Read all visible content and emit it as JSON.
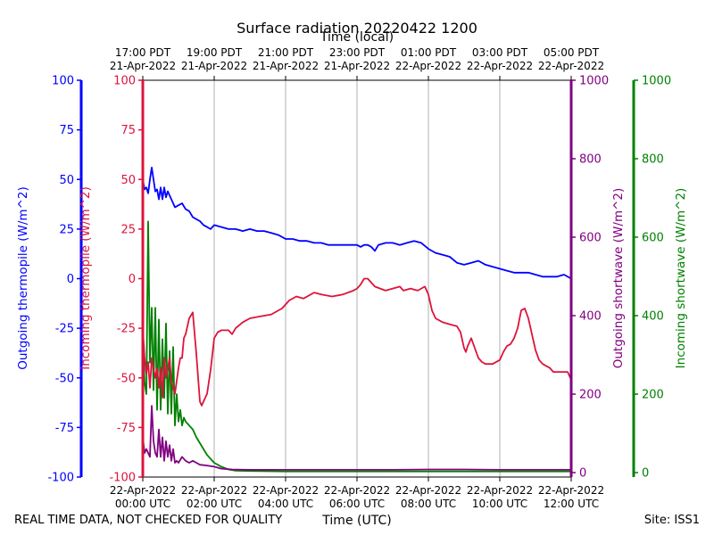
{
  "chart_data": {
    "type": "line",
    "title": "Surface radiation 20220422 1200",
    "top_axis_label": "Time (local)",
    "bottom_axis_label": "Time (UTC)",
    "x_range_hours_utc": [
      0,
      12
    ],
    "grid": "vertical lines at 2-hour ticks",
    "bottom_ticks": [
      {
        "t": 0,
        "line1": "22-Apr-2022",
        "line2": "00:00 UTC"
      },
      {
        "t": 2,
        "line1": "22-Apr-2022",
        "line2": "02:00 UTC"
      },
      {
        "t": 4,
        "line1": "22-Apr-2022",
        "line2": "04:00 UTC"
      },
      {
        "t": 6,
        "line1": "22-Apr-2022",
        "line2": "06:00 UTC"
      },
      {
        "t": 8,
        "line1": "22-Apr-2022",
        "line2": "08:00 UTC"
      },
      {
        "t": 10,
        "line1": "22-Apr-2022",
        "line2": "10:00 UTC"
      },
      {
        "t": 12,
        "line1": "22-Apr-2022",
        "line2": "12:00 UTC"
      }
    ],
    "top_ticks": [
      {
        "t": 0,
        "line1": "17:00 PDT",
        "line2": "21-Apr-2022"
      },
      {
        "t": 2,
        "line1": "19:00 PDT",
        "line2": "21-Apr-2022"
      },
      {
        "t": 4,
        "line1": "21:00 PDT",
        "line2": "21-Apr-2022"
      },
      {
        "t": 6,
        "line1": "23:00 PDT",
        "line2": "21-Apr-2022"
      },
      {
        "t": 8,
        "line1": "01:00 PDT",
        "line2": "22-Apr-2022"
      },
      {
        "t": 10,
        "line1": "03:00 PDT",
        "line2": "22-Apr-2022"
      },
      {
        "t": 12,
        "line1": "05:00 PDT",
        "line2": "22-Apr-2022"
      }
    ],
    "axes": [
      {
        "id": "out_thermo",
        "label": "Outgoing thermopile (W/m^2)",
        "color": "#0000ff",
        "ylim": [
          -100,
          100
        ],
        "ticks": [
          -100,
          -75,
          -50,
          -25,
          0,
          25,
          50,
          75,
          100
        ]
      },
      {
        "id": "in_thermo",
        "label": "Incoming thermopile (W/m^2)",
        "color": "#dc143c",
        "ylim": [
          -100,
          100
        ],
        "ticks": [
          -100,
          -75,
          -50,
          -25,
          0,
          25,
          50,
          75,
          100
        ]
      },
      {
        "id": "out_sw",
        "label": "Outgoing shortwave (W/m^2)",
        "color": "#800080",
        "ylim": [
          0,
          1000
        ],
        "ticks": [
          0,
          200,
          400,
          600,
          800,
          1000
        ]
      },
      {
        "id": "in_sw",
        "label": "Incoming shortwave (W/m^2)",
        "color": "#008000",
        "ylim": [
          0,
          1000
        ],
        "ticks": [
          0,
          200,
          400,
          600,
          800,
          1000
        ]
      }
    ],
    "series": [
      {
        "name": "Incoming shortwave",
        "axis": "in_sw",
        "color": "#008000",
        "t": [
          0,
          0.05,
          0.1,
          0.15,
          0.2,
          0.25,
          0.3,
          0.35,
          0.4,
          0.45,
          0.5,
          0.55,
          0.6,
          0.65,
          0.7,
          0.75,
          0.8,
          0.85,
          0.9,
          0.95,
          1.0,
          1.05,
          1.1,
          1.15,
          1.2,
          1.3,
          1.4,
          1.5,
          1.6,
          1.7,
          1.8,
          1.9,
          2.0,
          2.2,
          2.4,
          2.6,
          3.0,
          4.0,
          5.0,
          6.0,
          7.0,
          8.0,
          9.0,
          10.0,
          11.0,
          12.0
        ],
        "values": [
          350,
          230,
          200,
          640,
          280,
          420,
          210,
          420,
          160,
          390,
          160,
          340,
          190,
          380,
          150,
          310,
          150,
          320,
          120,
          200,
          130,
          160,
          120,
          140,
          130,
          120,
          110,
          90,
          75,
          60,
          45,
          35,
          25,
          15,
          8,
          5,
          4,
          3,
          3,
          3,
          3,
          3,
          3,
          3,
          3,
          3
        ]
      },
      {
        "name": "Outgoing shortwave",
        "axis": "out_sw",
        "color": "#800080",
        "t": [
          0,
          0.05,
          0.1,
          0.15,
          0.2,
          0.25,
          0.3,
          0.35,
          0.4,
          0.45,
          0.5,
          0.55,
          0.6,
          0.65,
          0.7,
          0.75,
          0.8,
          0.85,
          0.9,
          0.95,
          1.0,
          1.1,
          1.2,
          1.3,
          1.4,
          1.5,
          1.6,
          1.8,
          2.0,
          2.2,
          2.5,
          3.0,
          4.0,
          5.0,
          6.0,
          7.0,
          8.0,
          9.0,
          10.0,
          11.0,
          12.0
        ],
        "values": [
          90,
          50,
          60,
          50,
          40,
          170,
          80,
          50,
          40,
          110,
          40,
          90,
          30,
          80,
          40,
          70,
          30,
          60,
          25,
          30,
          25,
          40,
          30,
          25,
          30,
          25,
          20,
          18,
          15,
          10,
          8,
          7,
          7,
          7,
          7,
          7,
          8,
          8,
          7,
          7,
          7
        ]
      },
      {
        "name": "Incoming thermopile",
        "axis": "in_thermo",
        "color": "#dc143c",
        "t": [
          0,
          0.05,
          0.1,
          0.15,
          0.2,
          0.25,
          0.3,
          0.35,
          0.4,
          0.45,
          0.5,
          0.55,
          0.6,
          0.65,
          0.7,
          0.75,
          0.8,
          0.9,
          1.0,
          1.05,
          1.1,
          1.15,
          1.2,
          1.3,
          1.4,
          1.5,
          1.55,
          1.6,
          1.65,
          1.7,
          1.75,
          1.8,
          1.9,
          2.0,
          2.1,
          2.2,
          2.4,
          2.5,
          2.6,
          2.8,
          3.0,
          3.3,
          3.6,
          3.9,
          4.1,
          4.3,
          4.5,
          4.8,
          5.0,
          5.3,
          5.6,
          5.9,
          6.0,
          6.1,
          6.2,
          6.3,
          6.5,
          6.8,
          7.0,
          7.2,
          7.3,
          7.5,
          7.7,
          7.9,
          8.0,
          8.05,
          8.1,
          8.2,
          8.4,
          8.6,
          8.8,
          8.9,
          9.0,
          9.05,
          9.1,
          9.2,
          9.4,
          9.5,
          9.6,
          9.8,
          10.0,
          10.1,
          10.2,
          10.3,
          10.4,
          10.5,
          10.6,
          10.7,
          10.8,
          10.9,
          11.0,
          11.1,
          11.2,
          11.3,
          11.4,
          11.5,
          11.6,
          11.7,
          11.8,
          11.9,
          12.0
        ],
        "values": [
          -25,
          -40,
          -48,
          -42,
          -55,
          -40,
          -45,
          -50,
          -45,
          -55,
          -45,
          -60,
          -40,
          -50,
          -45,
          -40,
          -52,
          -58,
          -45,
          -40,
          -40,
          -30,
          -28,
          -20,
          -17,
          -38,
          -50,
          -62,
          -64,
          -62,
          -60,
          -58,
          -46,
          -30,
          -27,
          -26,
          -26,
          -28,
          -25,
          -22,
          -20,
          -19,
          -18,
          -15,
          -11,
          -9,
          -10,
          -7,
          -8,
          -9,
          -8,
          -6,
          -5,
          -3,
          0,
          0,
          -4,
          -6,
          -5,
          -4,
          -6,
          -5,
          -6,
          -4,
          -8,
          -12,
          -16,
          -20,
          -22,
          -23,
          -24,
          -27,
          -35,
          -37,
          -34,
          -30,
          -40,
          -42,
          -43,
          -43,
          -41,
          -37,
          -34,
          -33,
          -30,
          -25,
          -16,
          -15,
          -20,
          -28,
          -36,
          -41,
          -43,
          -44,
          -45,
          -47,
          -47,
          -47,
          -47,
          -47,
          -51
        ]
      },
      {
        "name": "Outgoing thermopile",
        "axis": "out_thermo",
        "color": "#0000ff",
        "t": [
          0,
          0.05,
          0.1,
          0.15,
          0.2,
          0.25,
          0.3,
          0.35,
          0.4,
          0.45,
          0.5,
          0.55,
          0.6,
          0.65,
          0.7,
          0.75,
          0.8,
          0.9,
          1.0,
          1.1,
          1.2,
          1.3,
          1.4,
          1.5,
          1.6,
          1.7,
          1.8,
          1.9,
          2.0,
          2.2,
          2.4,
          2.6,
          2.8,
          3.0,
          3.2,
          3.4,
          3.6,
          3.8,
          4.0,
          4.2,
          4.4,
          4.6,
          4.8,
          5.0,
          5.2,
          5.4,
          5.6,
          5.8,
          6.0,
          6.1,
          6.2,
          6.3,
          6.4,
          6.5,
          6.6,
          6.8,
          7.0,
          7.2,
          7.4,
          7.6,
          7.8,
          8.0,
          8.2,
          8.4,
          8.6,
          8.8,
          9.0,
          9.2,
          9.4,
          9.6,
          9.8,
          10.0,
          10.2,
          10.4,
          10.6,
          10.8,
          11.0,
          11.2,
          11.4,
          11.6,
          11.8,
          12.0
        ],
        "values": [
          50,
          45,
          46,
          43,
          50,
          56,
          50,
          44,
          45,
          40,
          46,
          40,
          46,
          41,
          44,
          42,
          40,
          36,
          37,
          38,
          35,
          34,
          31,
          30,
          29,
          27,
          26,
          25,
          27,
          26,
          25,
          25,
          24,
          25,
          24,
          24,
          23,
          22,
          20,
          20,
          19,
          19,
          18,
          18,
          17,
          17,
          17,
          17,
          17,
          16,
          17,
          17,
          16,
          14,
          17,
          18,
          18,
          17,
          18,
          19,
          18,
          15,
          13,
          12,
          11,
          8,
          7,
          8,
          9,
          7,
          6,
          5,
          4,
          3,
          3,
          3,
          2,
          1,
          1,
          1,
          2,
          0
        ]
      }
    ]
  },
  "footer": {
    "left_note": "REAL TIME DATA, NOT CHECKED FOR QUALITY",
    "site": "Site: ISS1"
  }
}
